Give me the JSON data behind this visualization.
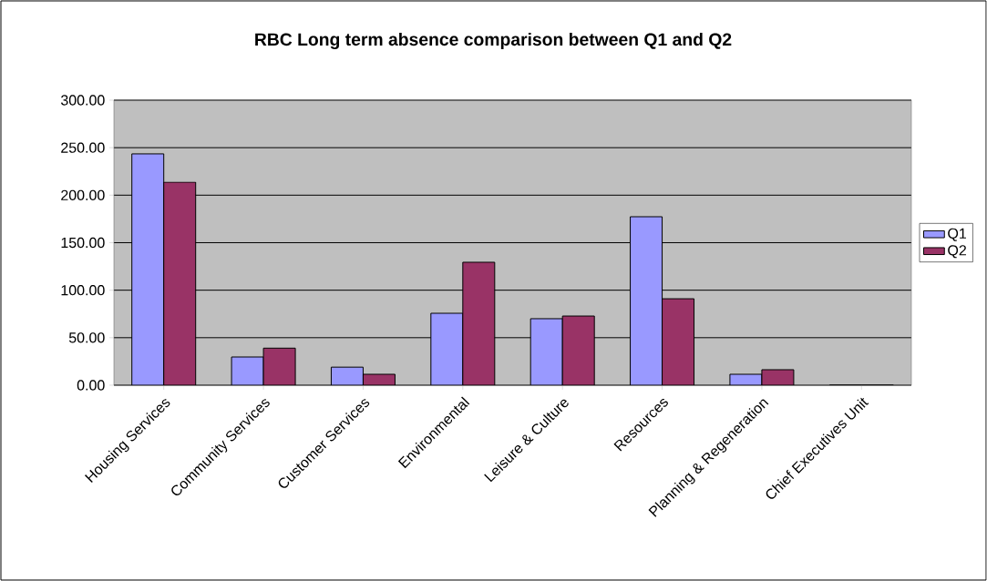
{
  "chart_data": {
    "type": "bar",
    "title": "RBC Long term absence comparison between Q1 and Q2",
    "categories": [
      "Housing Services",
      "Community Services",
      "Customer Services",
      "Environmental",
      "Leisure & Culture",
      "Resources",
      "Planning & Regeneration",
      "Chief Executives Unit"
    ],
    "series": [
      {
        "name": "Q1",
        "color": "#9999ff",
        "values": [
          243.5,
          29.7,
          19,
          75.7,
          70,
          177.3,
          11.5,
          0
        ]
      },
      {
        "name": "Q2",
        "color": "#993366",
        "values": [
          213.7,
          39,
          11.5,
          129.4,
          72.8,
          91,
          16.3,
          0
        ]
      }
    ],
    "ylim": [
      0,
      300
    ],
    "yticks": [
      {
        "value": 0,
        "label": "0.00"
      },
      {
        "value": 50,
        "label": "50.00"
      },
      {
        "value": 100,
        "label": "100.00"
      },
      {
        "value": 150,
        "label": "150.00"
      },
      {
        "value": 200,
        "label": "200.00"
      },
      {
        "value": 250,
        "label": "250.00"
      },
      {
        "value": 300,
        "label": "300.00"
      }
    ],
    "grid": "y",
    "legend": "right"
  }
}
